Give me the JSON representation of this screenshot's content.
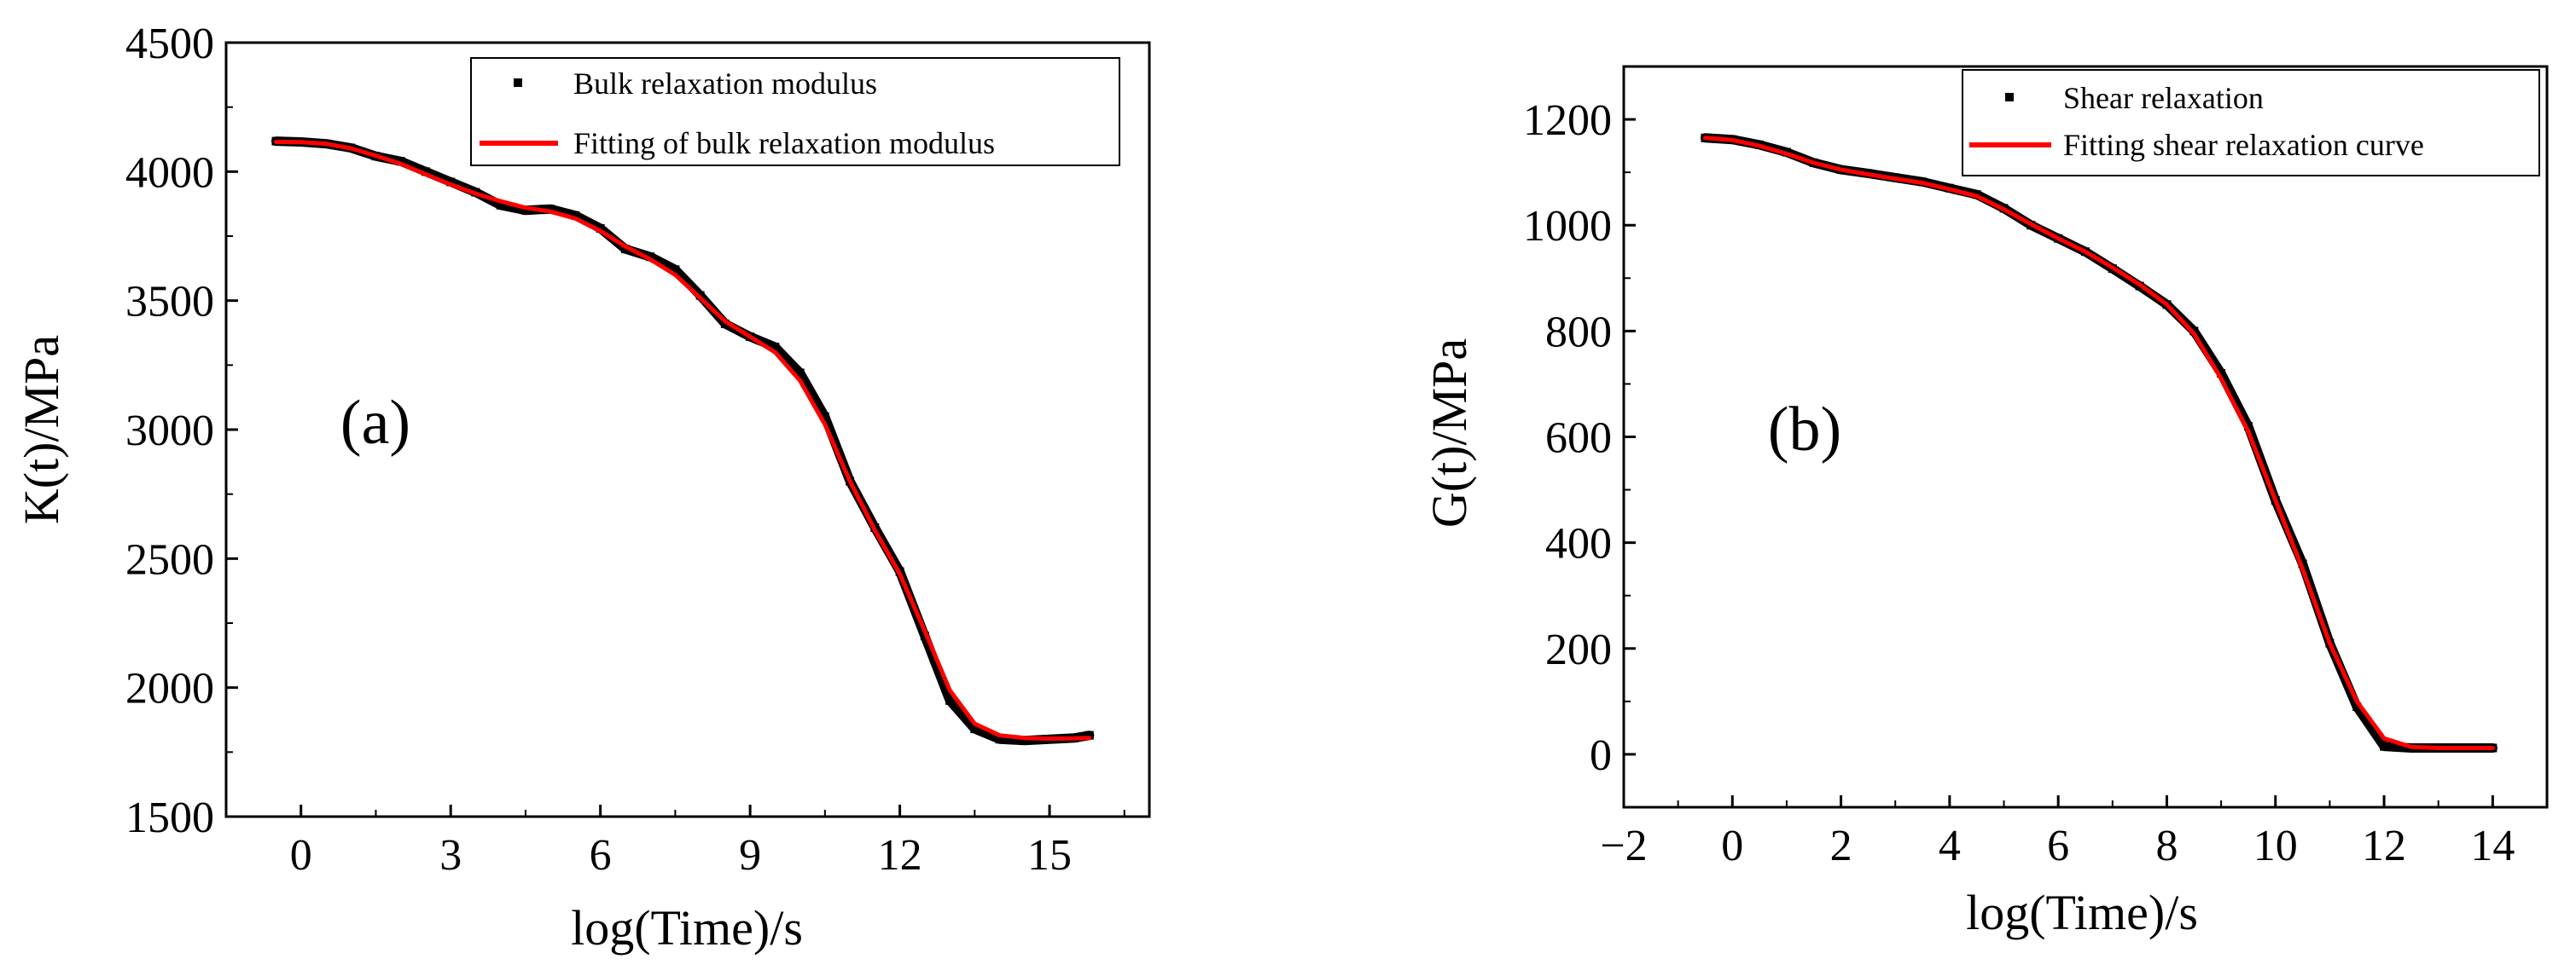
{
  "chart_data": [
    {
      "type": "line",
      "panel_label": "(a)",
      "xlabel": "log(Time)/s",
      "ylabel": "K(t)/MPa",
      "xlim": [
        -1.5,
        17
      ],
      "ylim": [
        1500,
        4500
      ],
      "xticks": [
        0,
        3,
        6,
        9,
        12,
        15
      ],
      "yticks": [
        1500,
        2000,
        2500,
        3000,
        3500,
        4000,
        4500
      ],
      "legend_position": "top-right",
      "series": [
        {
          "name": "Bulk relaxation modulus",
          "style": "scatter",
          "color": "#000000",
          "x": [
            -0.5,
            0,
            0.5,
            1,
            1.5,
            2,
            2.5,
            3,
            3.5,
            4,
            4.5,
            5,
            5.5,
            6,
            6.5,
            7,
            7.5,
            8,
            8.5,
            9,
            9.5,
            10,
            10.5,
            11,
            11.5,
            12,
            12.5,
            13,
            13.5,
            14,
            14.5,
            15,
            15.5,
            15.8
          ],
          "y": [
            4118,
            4115,
            4108,
            4092,
            4060,
            4040,
            4000,
            3960,
            3920,
            3870,
            3850,
            3855,
            3830,
            3780,
            3700,
            3670,
            3620,
            3520,
            3410,
            3360,
            3320,
            3220,
            3050,
            2800,
            2620,
            2450,
            2200,
            1950,
            1840,
            1800,
            1795,
            1800,
            1805,
            1815
          ]
        },
        {
          "name": "Fitting of bulk relaxation modulus",
          "style": "line",
          "color": "#ff0000",
          "x": [
            -0.5,
            0,
            0.5,
            1,
            1.5,
            2,
            2.5,
            3,
            3.5,
            4,
            4.5,
            5,
            5.5,
            6,
            6.5,
            7,
            7.5,
            8,
            8.5,
            9,
            9.5,
            10,
            10.5,
            11,
            11.5,
            12,
            12.5,
            13,
            13.5,
            14,
            14.5,
            15,
            15.5,
            15.8
          ],
          "y": [
            4115,
            4114,
            4108,
            4090,
            4062,
            4030,
            3990,
            3950,
            3915,
            3885,
            3860,
            3845,
            3818,
            3770,
            3710,
            3660,
            3600,
            3510,
            3420,
            3360,
            3300,
            3190,
            3020,
            2800,
            2610,
            2440,
            2220,
            1990,
            1860,
            1815,
            1805,
            1802,
            1803,
            1805
          ]
        }
      ]
    },
    {
      "type": "line",
      "panel_label": "(b)",
      "xlabel": "log(Time)/s",
      "ylabel": "G(t)/MPa",
      "xlim": [
        -2,
        15
      ],
      "ylim": [
        -100,
        1300
      ],
      "xticks": [
        -2,
        0,
        2,
        4,
        6,
        8,
        10,
        12,
        14
      ],
      "xtick_labels": [
        "−2",
        "0",
        "2",
        "4",
        "6",
        "8",
        "10",
        "12",
        "14"
      ],
      "yticks": [
        0,
        200,
        400,
        600,
        800,
        1000,
        1200
      ],
      "legend_position": "top-right",
      "series": [
        {
          "name": "Shear relaxation",
          "style": "scatter",
          "color": "#000000",
          "x": [
            -0.5,
            0,
            0.5,
            1,
            1.5,
            2,
            2.5,
            3,
            3.5,
            4,
            4.5,
            5,
            5.5,
            6,
            6.5,
            7,
            7.5,
            8,
            8.5,
            9,
            9.5,
            10,
            10.5,
            11,
            11.5,
            12,
            12.5,
            13,
            13.5,
            14
          ],
          "y": [
            1165,
            1162,
            1152,
            1138,
            1118,
            1105,
            1098,
            1090,
            1082,
            1070,
            1058,
            1032,
            1000,
            975,
            950,
            918,
            885,
            850,
            800,
            720,
            620,
            480,
            360,
            210,
            90,
            15,
            12,
            12,
            12,
            12
          ]
        },
        {
          "name": "Fitting shear relaxation curve",
          "style": "line",
          "color": "#ff0000",
          "x": [
            -0.5,
            0,
            0.5,
            1,
            1.5,
            2,
            2.5,
            3,
            3.5,
            4,
            4.5,
            5,
            5.5,
            6,
            6.5,
            7,
            7.5,
            8,
            8.5,
            9,
            9.5,
            10,
            10.5,
            11,
            11.5,
            12,
            12.5,
            13,
            13.5,
            14
          ],
          "y": [
            1165,
            1161,
            1150,
            1135,
            1118,
            1105,
            1096,
            1088,
            1080,
            1068,
            1055,
            1030,
            1002,
            975,
            950,
            920,
            888,
            850,
            795,
            710,
            610,
            480,
            350,
            210,
            100,
            30,
            14,
            12,
            12,
            12
          ]
        }
      ]
    }
  ]
}
